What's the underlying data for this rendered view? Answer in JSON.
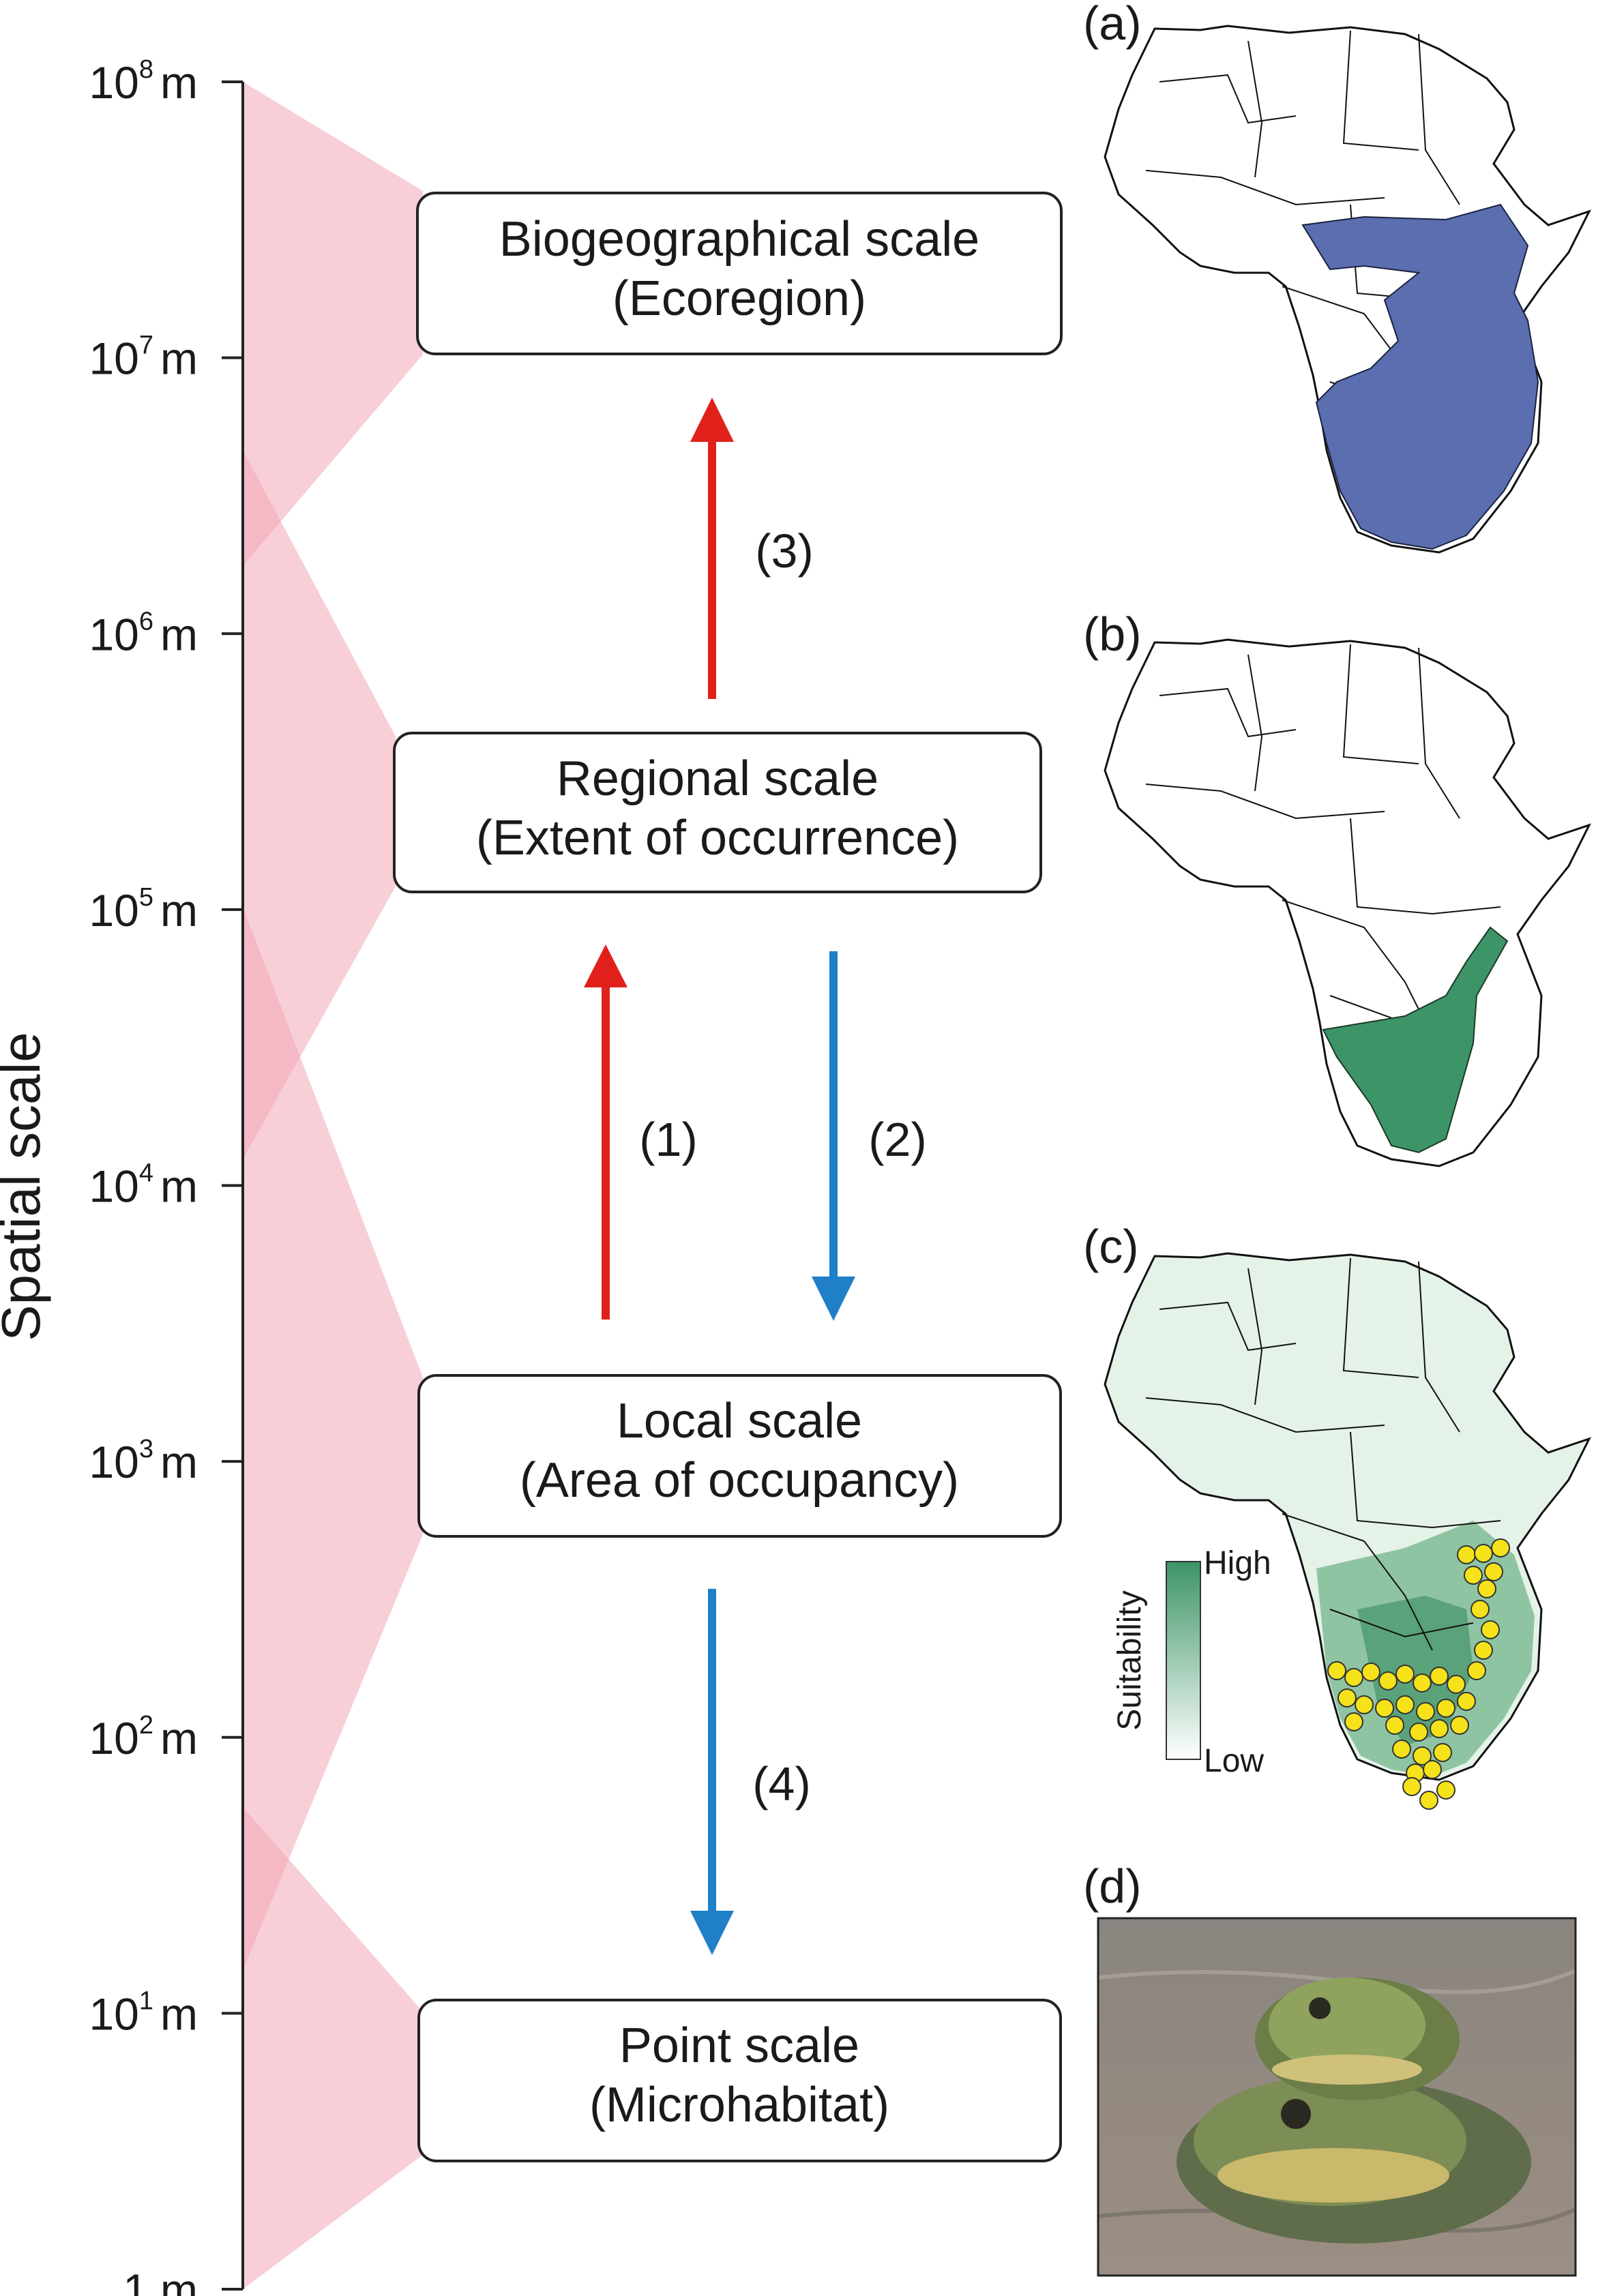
{
  "axis": {
    "label": "Spatial scale",
    "ticks": [
      {
        "base": "1",
        "exp": "",
        "unit": "m"
      },
      {
        "base": "10",
        "exp": "1",
        "unit": "m"
      },
      {
        "base": "10",
        "exp": "2",
        "unit": "m"
      },
      {
        "base": "10",
        "exp": "3",
        "unit": "m"
      },
      {
        "base": "10",
        "exp": "4",
        "unit": "m"
      },
      {
        "base": "10",
        "exp": "5",
        "unit": "m"
      },
      {
        "base": "10",
        "exp": "6",
        "unit": "m"
      },
      {
        "base": "10",
        "exp": "7",
        "unit": "m"
      },
      {
        "base": "10",
        "exp": "8",
        "unit": "m"
      }
    ]
  },
  "scales": [
    {
      "title": "Biogeographical scale",
      "subtitle": "(Ecoregion)"
    },
    {
      "title": "Regional scale",
      "subtitle": "(Extent of occurrence)"
    },
    {
      "title": "Local scale",
      "subtitle": "(Area of occupancy)"
    },
    {
      "title": "Point scale",
      "subtitle": "(Microhabitat)"
    }
  ],
  "arrows": [
    {
      "label": "(1)",
      "direction": "up",
      "color": "#e0211b"
    },
    {
      "label": "(2)",
      "direction": "down",
      "color": "#1f7fc7"
    },
    {
      "label": "(3)",
      "direction": "up",
      "color": "#e0211b"
    },
    {
      "label": "(4)",
      "direction": "down",
      "color": "#1f7fc7"
    }
  ],
  "panels": [
    {
      "label": "(a)",
      "content": "map",
      "fill": "#5a6eb0"
    },
    {
      "label": "(b)",
      "content": "map",
      "fill": "#3d9466"
    },
    {
      "label": "(c)",
      "content": "map",
      "fill": "#6fb08a"
    },
    {
      "label": "(d)",
      "content": "photo"
    }
  ],
  "legend": {
    "title": "Suitability",
    "high": "High",
    "low": "Low"
  },
  "colors": {
    "band": "#f3a8b6",
    "up_arrow": "#e0211b",
    "down_arrow": "#1f7fc7"
  }
}
